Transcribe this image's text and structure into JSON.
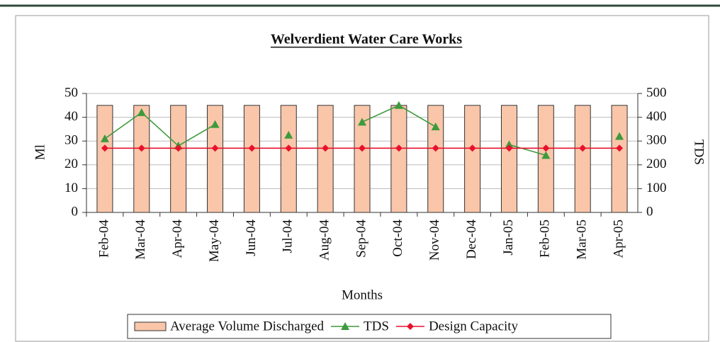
{
  "chart_data": {
    "type": "bar",
    "title": "Welverdient Water Care Works",
    "categories": [
      "Feb-04",
      "Mar-04",
      "Apr-04",
      "May-04",
      "Jun-04",
      "Jul-04",
      "Aug-04",
      "Sep-04",
      "Oct-04",
      "Nov-04",
      "Dec-04",
      "Jan-05",
      "Feb-05",
      "Mar-05",
      "Apr-05"
    ],
    "series": [
      {
        "name": "Average Volume Discharged",
        "type": "bar",
        "axis": "y",
        "color": "#f9c6a9",
        "values": [
          45,
          45,
          45,
          45,
          45,
          45,
          45,
          45,
          45,
          45,
          45,
          45,
          45,
          45,
          45
        ]
      },
      {
        "name": "TDS",
        "type": "line",
        "axis": "y2",
        "color": "#3d9a3d",
        "marker": "triangle",
        "values": [
          310,
          420,
          280,
          370,
          null,
          325,
          null,
          380,
          450,
          360,
          null,
          285,
          240,
          null,
          320
        ]
      },
      {
        "name": "Design Capacity",
        "type": "line",
        "axis": "y",
        "color": "#e8112d",
        "marker": "diamond",
        "values": [
          27,
          27,
          27,
          27,
          27,
          27,
          27,
          27,
          27,
          27,
          27,
          27,
          27,
          27,
          27
        ]
      }
    ],
    "ylabel": "Ml",
    "y2label": "TDS",
    "xlabel": "Months",
    "ylim": [
      0,
      50
    ],
    "yticks": [
      0,
      10,
      20,
      30,
      40,
      50
    ],
    "y2lim": [
      0,
      500
    ],
    "y2ticks": [
      0,
      100,
      200,
      300,
      400,
      500
    ],
    "grid": true,
    "legend": "bottom"
  }
}
